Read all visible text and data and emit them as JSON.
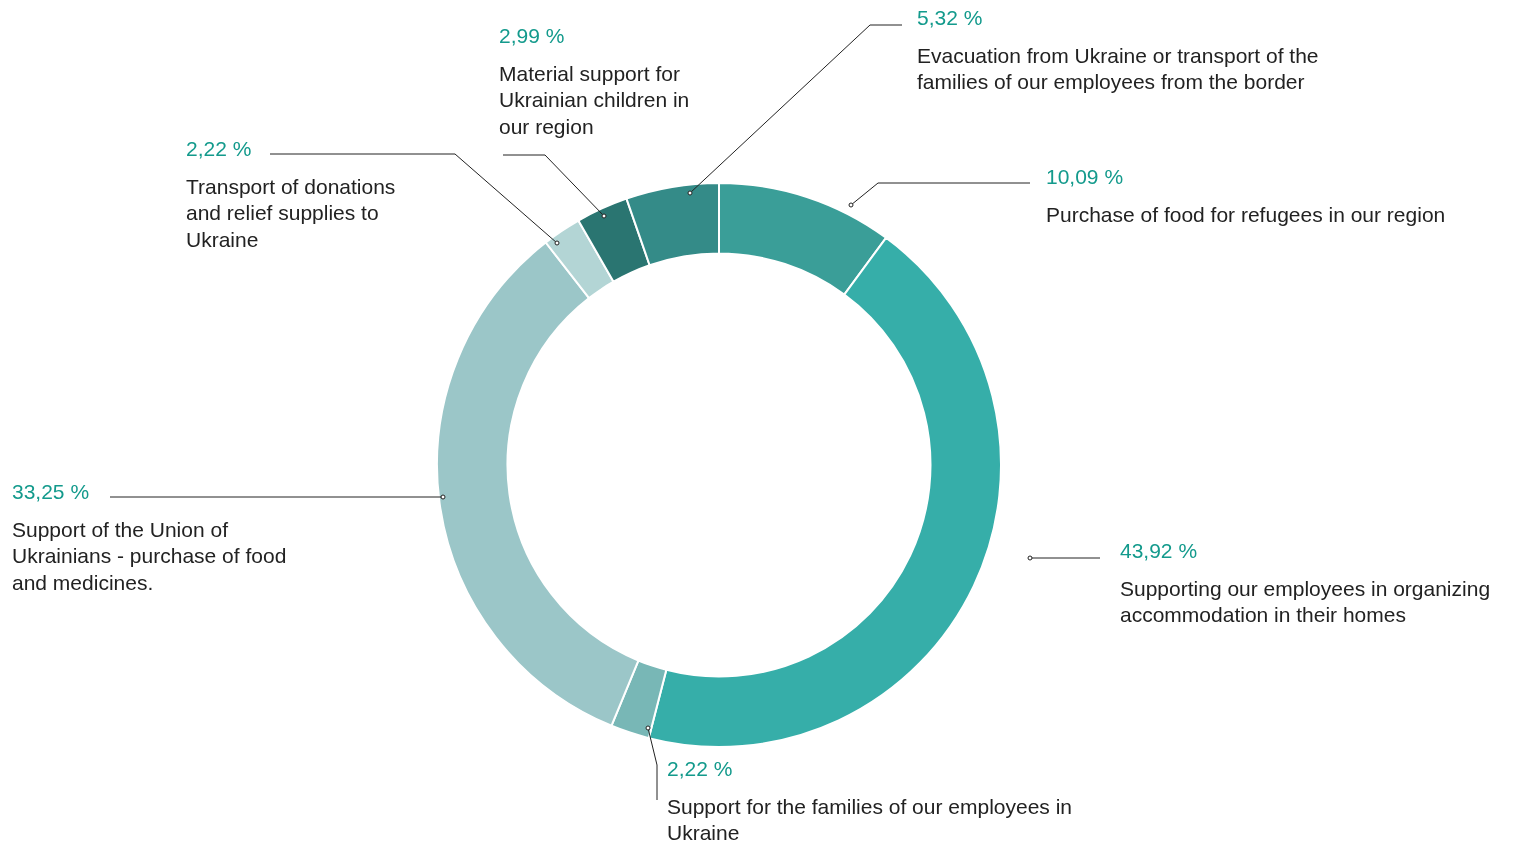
{
  "chart_data": {
    "type": "donut",
    "categories": [
      "Purchase of food for refugees in our region",
      "Supporting our employees in organizing accommodation in their homes",
      "Support for the families of our employees in Ukraine",
      "Support of the Union of Ukrainians - purchase of food and medicines.",
      "Transport of donations and relief supplies to Ukraine",
      "Material support for Ukrainian children in our region",
      "Evacuation from Ukraine or transport of the families of our employees from the border"
    ],
    "values": [
      10.09,
      43.92,
      2.22,
      33.25,
      2.22,
      2.99,
      5.32
    ],
    "value_labels": [
      "10,09 %",
      "43,92 %",
      "2,22 %",
      "33,25 %",
      "2,22 %",
      "2,99 %",
      "5,32 %"
    ],
    "colors": [
      "#3a9e98",
      "#36aea9",
      "#78b7b6",
      "#9bc6c8",
      "#b3d5d5",
      "#2a7571",
      "#348b88"
    ],
    "legend": false
  }
}
